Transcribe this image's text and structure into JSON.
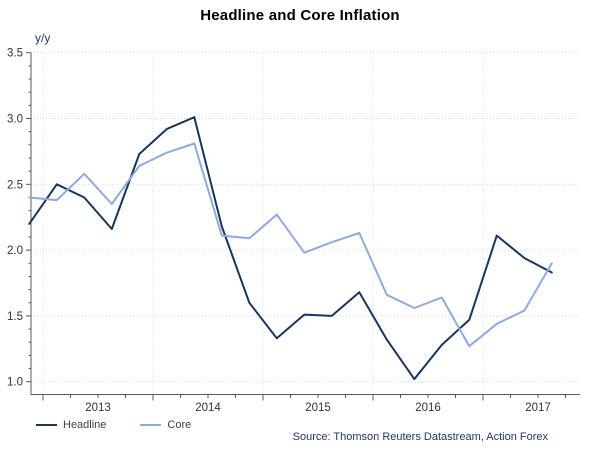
{
  "chart_data": {
    "type": "line",
    "title": "Headline and Core Inflation",
    "ylabel": "y/y",
    "source": "Source: Thomson Reuters Datastream, Action Forex",
    "x": [
      "2012Q4",
      "2013Q1",
      "2013Q2",
      "2013Q3",
      "2013Q4",
      "2014Q1",
      "2014Q2",
      "2014Q3",
      "2014Q4",
      "2015Q1",
      "2015Q2",
      "2015Q3",
      "2015Q4",
      "2016Q1",
      "2016Q2",
      "2016Q3",
      "2016Q4",
      "2017Q1",
      "2017Q2",
      "2017Q3"
    ],
    "series": [
      {
        "name": "Headline",
        "color": "#17365d",
        "values": [
          2.2,
          2.5,
          2.4,
          2.16,
          2.73,
          2.92,
          3.01,
          2.18,
          1.6,
          1.33,
          1.51,
          1.5,
          1.68,
          1.32,
          1.02,
          1.28,
          1.47,
          2.11,
          1.94,
          1.83
        ]
      },
      {
        "name": "Core",
        "color": "#8faadc",
        "values": [
          2.4,
          2.38,
          2.58,
          2.35,
          2.64,
          2.74,
          2.81,
          2.11,
          2.09,
          2.27,
          1.98,
          2.06,
          2.13,
          1.66,
          1.56,
          1.64,
          1.27,
          1.44,
          1.54,
          1.9
        ]
      }
    ],
    "y_ticks": [
      3.5,
      3.0,
      2.5,
      2.0,
      1.5,
      1.0
    ],
    "x_tick_labels": [
      "2013",
      "2014",
      "2015",
      "2016",
      "2017"
    ],
    "ylim": [
      0.9,
      3.5
    ],
    "grid": true,
    "legend_position": "bottom-left",
    "colors": {
      "grid": "#d9d9d9",
      "axis": "#595959",
      "tick_label": "#333333",
      "title": "#000000",
      "source_text": "#1f3864"
    }
  }
}
